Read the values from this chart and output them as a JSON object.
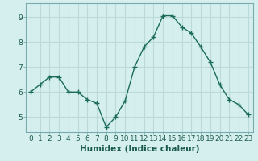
{
  "x": [
    0,
    1,
    2,
    3,
    4,
    5,
    6,
    7,
    8,
    9,
    10,
    11,
    12,
    13,
    14,
    15,
    16,
    17,
    18,
    19,
    20,
    21,
    22,
    23
  ],
  "y": [
    6.0,
    6.3,
    6.6,
    6.6,
    6.0,
    6.0,
    5.7,
    5.55,
    4.6,
    5.0,
    5.65,
    7.0,
    7.8,
    8.2,
    9.05,
    9.05,
    8.6,
    8.35,
    7.8,
    7.2,
    6.3,
    5.7,
    5.5,
    5.1
  ],
  "xlabel": "Humidex (Indice chaleur)",
  "ylabel": "",
  "ylim": [
    4.4,
    9.55
  ],
  "xlim": [
    -0.5,
    23.5
  ],
  "bg_color": "#d5efef",
  "grid_color": "#bcdada",
  "line_color": "#1a6b5a",
  "marker_color": "#1a6b5a",
  "xticks": [
    0,
    1,
    2,
    3,
    4,
    5,
    6,
    7,
    8,
    9,
    10,
    11,
    12,
    13,
    14,
    15,
    16,
    17,
    18,
    19,
    20,
    21,
    22,
    23
  ],
  "yticks": [
    5,
    6,
    7,
    8,
    9
  ],
  "xlabel_fontsize": 7.5,
  "tick_fontsize": 6.5
}
